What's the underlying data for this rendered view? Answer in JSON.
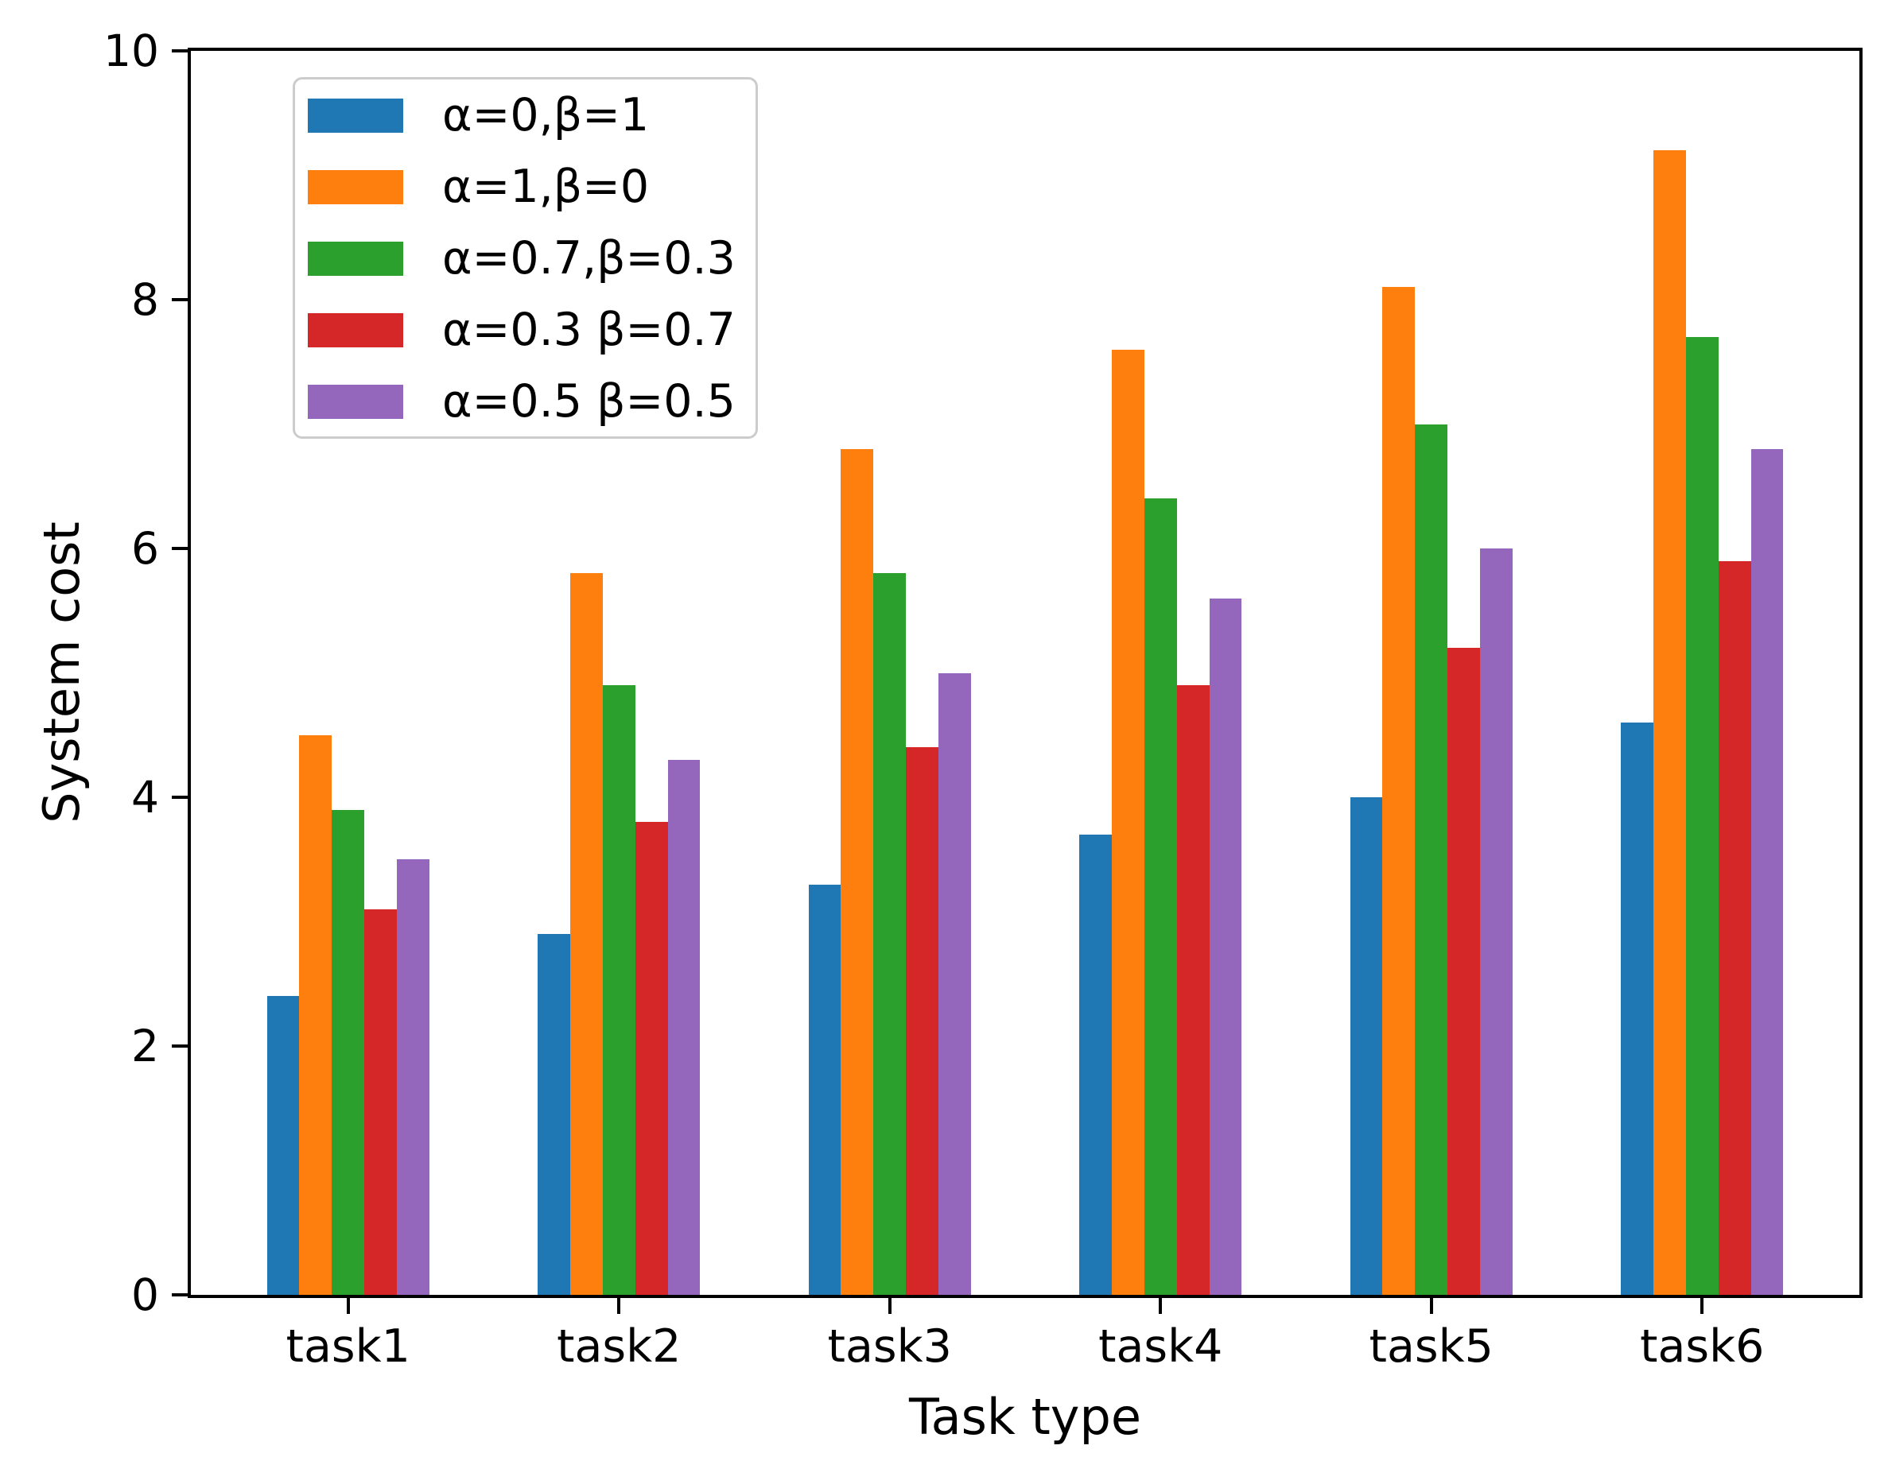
{
  "chart_data": {
    "type": "bar",
    "title": "",
    "xlabel": "Task type",
    "ylabel": "System cost",
    "categories": [
      "task1",
      "task2",
      "task3",
      "task4",
      "task5",
      "task6"
    ],
    "series": [
      {
        "name": "α=0,β=1",
        "color": "#1f77b4",
        "values": [
          2.4,
          2.9,
          3.3,
          3.7,
          4.0,
          4.6
        ]
      },
      {
        "name": "α=1,β=0",
        "color": "#ff7f0e",
        "values": [
          4.5,
          5.8,
          6.8,
          7.6,
          8.1,
          9.2
        ]
      },
      {
        "name": "α=0.7,β=0.3",
        "color": "#2ca02c",
        "values": [
          3.9,
          4.9,
          5.8,
          6.4,
          7.0,
          7.7
        ]
      },
      {
        "name": "α=0.3 β=0.7",
        "color": "#d62728",
        "values": [
          3.1,
          3.8,
          4.4,
          4.9,
          5.2,
          5.9
        ]
      },
      {
        "name": "α=0.5 β=0.5",
        "color": "#9467bd",
        "values": [
          3.5,
          4.3,
          5.0,
          5.6,
          6.0,
          6.8
        ]
      }
    ],
    "ylim": [
      0,
      10
    ],
    "yticks": [
      0,
      2,
      4,
      6,
      8,
      10
    ],
    "grid": false,
    "legend_position": "upper-left",
    "axis_color": "#000000",
    "background_color": "#ffffff"
  }
}
